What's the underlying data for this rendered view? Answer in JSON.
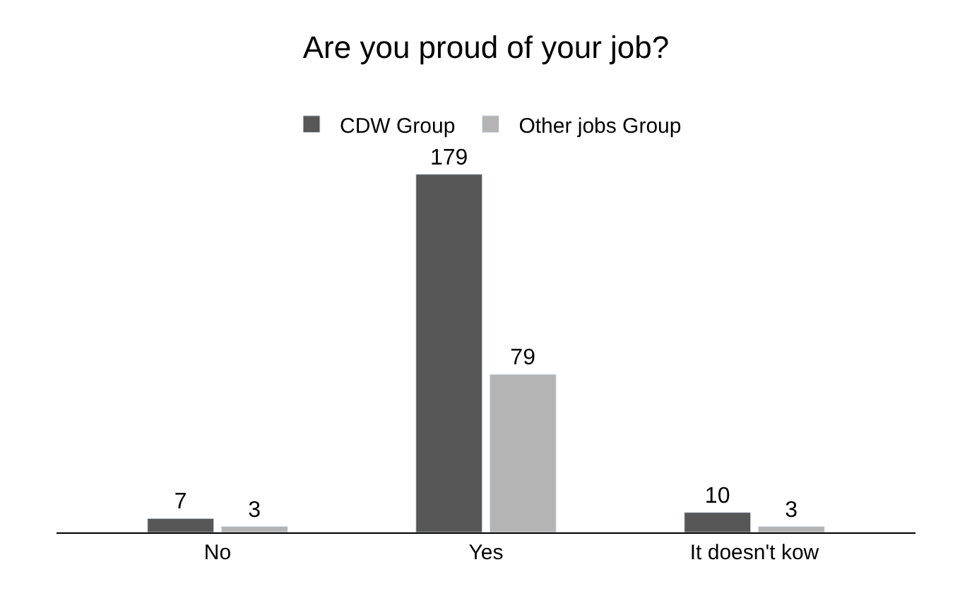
{
  "chart_data": {
    "type": "bar",
    "title": "Are you proud of your job?",
    "categories": [
      "No",
      "Yes",
      "It doesn't kow"
    ],
    "series": [
      {
        "name": "CDW Group",
        "color": "#575757",
        "values": [
          7,
          179,
          10
        ]
      },
      {
        "name": "Other jobs Group",
        "color": "#b4b4b4",
        "values": [
          3,
          79,
          3
        ]
      }
    ],
    "data_labels": true,
    "legend": "top"
  }
}
